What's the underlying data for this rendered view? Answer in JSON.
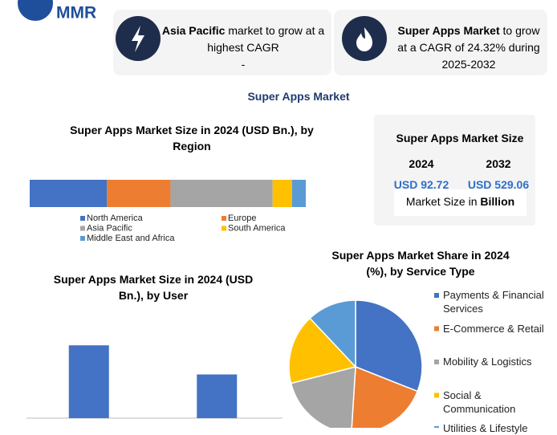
{
  "logo": "MMR",
  "cards": [
    {
      "bold": "Asia Pacific",
      "text": "market to grow at a highest CAGR",
      "note": "-"
    },
    {
      "bold": "Super Apps Market",
      "text": "to grow at a CAGR of 24.32% during 2025-2032"
    }
  ],
  "main_title": "Super Apps Market",
  "size_box": {
    "title": "Super Apps Market Size",
    "years": [
      "2024",
      "2032"
    ],
    "values": [
      "USD 92.72",
      "USD 529.06"
    ],
    "caption": "Market Size in",
    "caption_bold": "Billion"
  },
  "chart_data": [
    {
      "type": "bar",
      "orientation": "horizontal",
      "stacked": true,
      "title": "Super Apps Market Size in 2024 (USD Bn.), by Region",
      "xlim": [
        0,
        100
      ],
      "legend": "bottom",
      "series": [
        {
          "name": "North America",
          "color": "#4472c4",
          "values": [
            28
          ]
        },
        {
          "name": "Europe",
          "color": "#ed7d31",
          "values": [
            23
          ]
        },
        {
          "name": "Asia Pacific",
          "color": "#a5a5a5",
          "values": [
            37
          ]
        },
        {
          "name": "South America",
          "color": "#ffc000",
          "values": [
            7
          ]
        },
        {
          "name": "Middle East and Africa",
          "color": "#5b9bd5",
          "values": [
            5
          ]
        }
      ]
    },
    {
      "type": "bar",
      "orientation": "vertical",
      "title": "Super Apps Market Size in 2024 (USD Bn.), by User",
      "categories": [
        null,
        null
      ],
      "values": [
        75,
        45
      ],
      "color": "#4472c4",
      "ylim": [
        0,
        100
      ]
    },
    {
      "type": "pie",
      "title": "Super Apps Market Share in 2024 (%), by Service  Type",
      "legend": "right",
      "categories": [
        "Payments & Financial Services",
        "E-Commerce & Retail",
        "Mobility & Logistics",
        "Social & Communication",
        "Utilities & Lifestyle"
      ],
      "values": [
        31,
        20,
        20,
        17,
        12
      ],
      "colors": [
        "#4472c4",
        "#ed7d31",
        "#a5a5a5",
        "#ffc000",
        "#5b9bd5"
      ]
    }
  ]
}
